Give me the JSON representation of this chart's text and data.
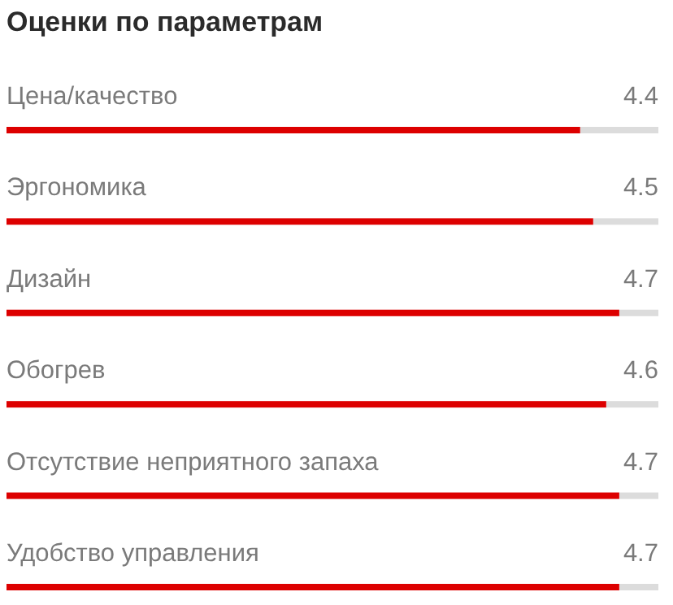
{
  "chart_data": {
    "type": "bar",
    "orientation": "horizontal",
    "title": "Оценки по параметрам",
    "categories": [
      "Цена/качество",
      "Эргономика",
      "Дизайн",
      "Обогрев",
      "Отсутствие неприятного запаха",
      "Удобство управления"
    ],
    "values": [
      4.4,
      4.5,
      4.7,
      4.6,
      4.7,
      4.7
    ],
    "color": "#dd0000",
    "xlim": [
      0,
      5
    ],
    "data_labels": true
  }
}
